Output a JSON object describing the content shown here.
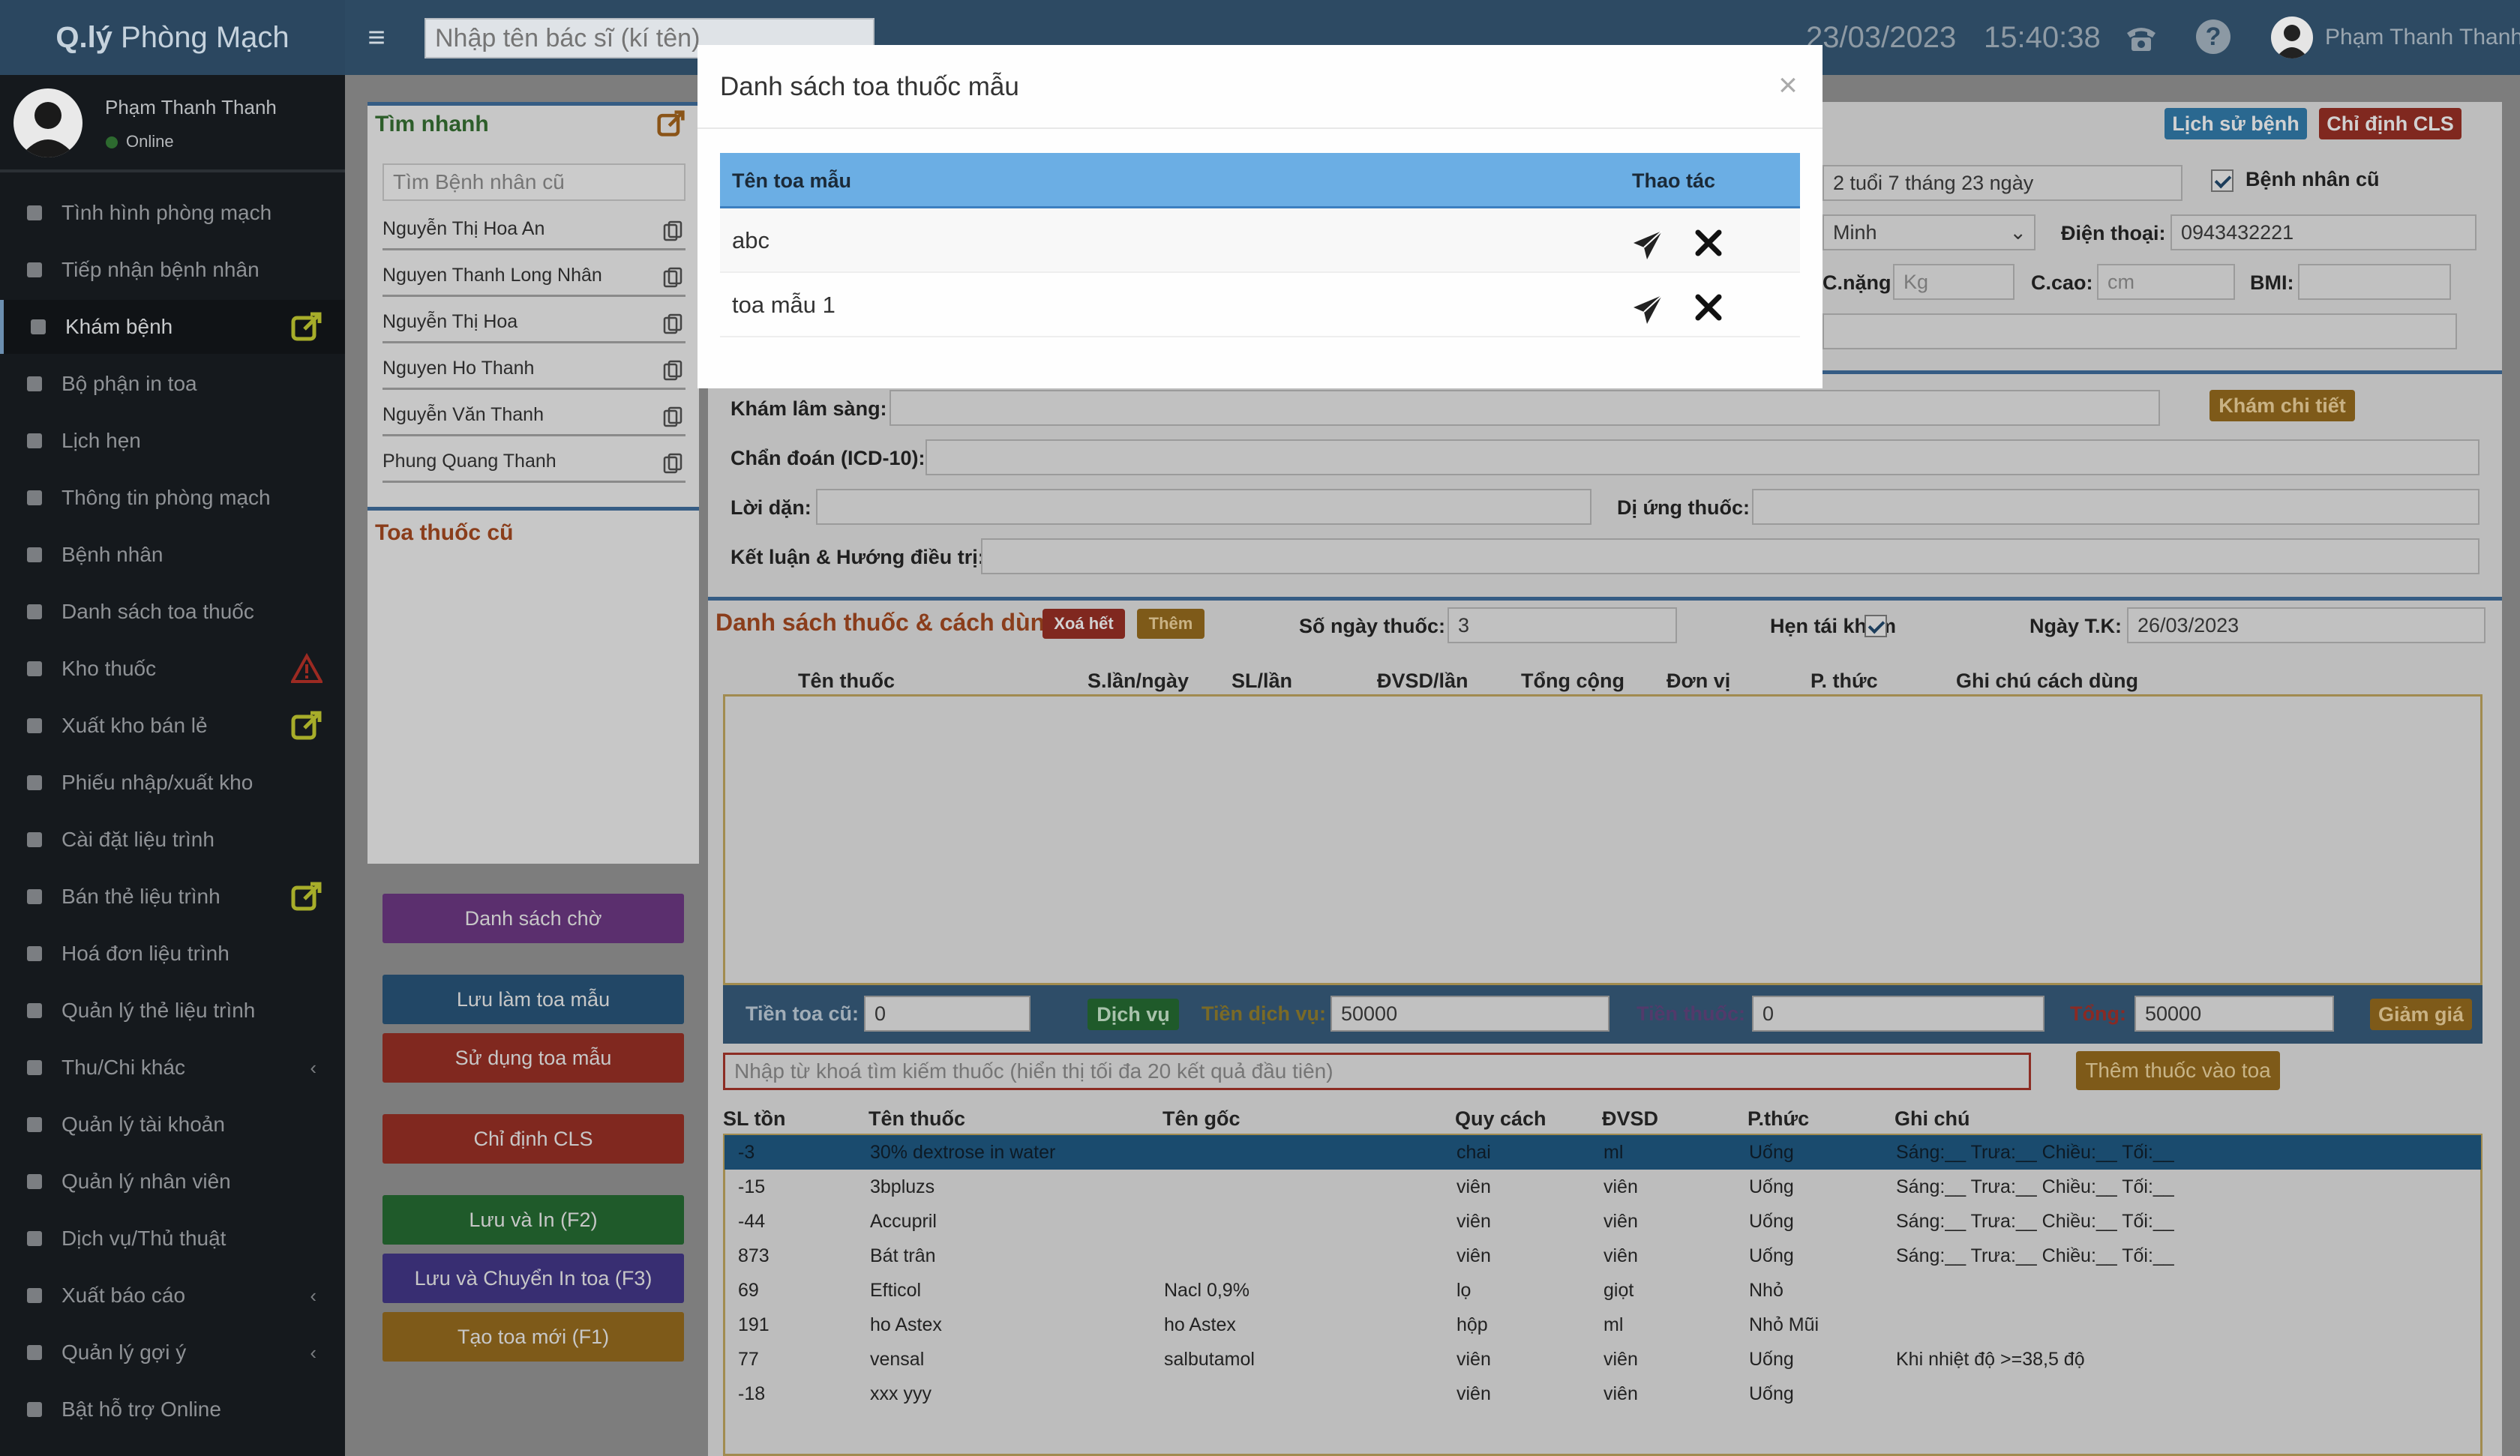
{
  "header": {
    "logo_prefix": "Q.lý",
    "logo_suffix": " Phòng Mạch",
    "doctor_search_placeholder": "Nhập tên bác sĩ (kí tên)",
    "date": "23/03/2023",
    "time": "15:40:38",
    "user_name": "Phạm Thanh Thanh"
  },
  "sidebar": {
    "user_name": "Phạm Thanh Thanh",
    "status": "Online",
    "items": [
      {
        "label": "Tình hình phòng mạch"
      },
      {
        "label": "Tiếp nhận bệnh nhân"
      },
      {
        "label": "Khám bệnh",
        "active": true,
        "badge": "external-link-icon"
      },
      {
        "label": "Bộ phận in toa"
      },
      {
        "label": "Lịch hẹn"
      },
      {
        "label": "Thông tin phòng mạch"
      },
      {
        "label": "Bệnh nhân"
      },
      {
        "label": "Danh sách toa thuốc"
      },
      {
        "label": "Kho thuốc",
        "badge": "warning-icon"
      },
      {
        "label": "Xuất kho bán lẻ",
        "badge": "external-link-icon"
      },
      {
        "label": "Phiếu nhập/xuất kho"
      },
      {
        "label": "Cài đặt liệu trình"
      },
      {
        "label": "Bán thẻ liệu trình",
        "badge": "external-link-icon"
      },
      {
        "label": "Hoá đơn liệu trình"
      },
      {
        "label": "Quản lý thẻ liệu trình"
      },
      {
        "label": "Thu/Chi khác",
        "chevron": true
      },
      {
        "label": "Quản lý tài khoản"
      },
      {
        "label": "Quản lý nhân viên"
      },
      {
        "label": "Dịch vụ/Thủ thuật"
      },
      {
        "label": "Xuất báo cáo",
        "chevron": true
      },
      {
        "label": "Quản lý gợi ý",
        "chevron": true
      },
      {
        "label": "Bật hỗ trợ Online"
      }
    ]
  },
  "quick": {
    "title": "Tìm nhanh",
    "search_placeholder": "Tìm Bệnh nhân cũ",
    "patients": [
      "Nguyễn Thị Hoa An",
      "Nguyen Thanh Long Nhân",
      "Nguyễn Thị Hoa",
      "Nguyen Ho Thanh",
      "Nguyễn Văn Thanh",
      "Phung Quang Thanh"
    ],
    "old_rx_title": "Toa thuốc cũ"
  },
  "actions": {
    "waiting_list": "Danh sách chờ",
    "save_template": "Lưu làm toa mẫu",
    "use_template": "Sử dụng toa mẫu",
    "order_cls": "Chỉ định CLS",
    "save_print": "Lưu và In (F2)",
    "save_transfer": "Lưu và Chuyển In toa (F3)",
    "new_rx": "Tạo toa mới (F1)"
  },
  "patient": {
    "history_btn": "Lịch sử bệnh",
    "cls_btn": "Chỉ định CLS",
    "age": "2 tuổi 7 tháng 23 ngày",
    "old_patient_label": "Bệnh nhân cũ",
    "district": "Minh",
    "phone_label": "Điện thoại:",
    "phone": "0943432221",
    "weight_label": "C.nặng:",
    "weight_ph": "Kg",
    "height_label": "C.cao:",
    "height_ph": "cm",
    "bmi_label": "BMI:"
  },
  "exam": {
    "clinical_label": "Khám lâm sàng:",
    "detail_btn": "Khám chi tiết",
    "diagnosis_label": "Chẩn đoán (ICD-10):",
    "advice_label": "Lời dặn:",
    "allergy_label": "Dị ứng thuốc:",
    "conclusion_label": "Kết luận & Hướng điều trị:"
  },
  "meds": {
    "title": "Danh sách thuốc & cách dùng",
    "clear_btn": "Xoá hết",
    "add_btn": "Thêm",
    "days_label": "Số ngày thuốc:",
    "days": "3",
    "revisit_label": "Hẹn tái khám",
    "revisit_date_label": "Ngày T.K:",
    "revisit_date": "26/03/2023",
    "columns": [
      "Tên thuốc",
      "S.lần/ngày",
      "SL/lần",
      "ĐVSD/lần",
      "Tổng cộng",
      "Đơn vị",
      "P. thức",
      "Ghi chú cách dùng"
    ]
  },
  "summary": {
    "old_rx_label": "Tiền toa cũ:",
    "old_rx_value": "0",
    "service_btn": "Dịch vụ",
    "service_label": "Tiền dịch vụ:",
    "service_value": "50000",
    "drug_label": "Tiền thuốc:",
    "drug_value": "0",
    "total_label": "Tổng:",
    "total_value": "50000",
    "discount_btn": "Giảm giá"
  },
  "drug_search": {
    "placeholder": "Nhập từ khoá tìm kiếm thuốc (hiển thị tối đa 20 kết quả đầu tiên)",
    "add_btn": "Thêm thuốc vào toa"
  },
  "results": {
    "columns": [
      "SL tồn",
      "Tên thuốc",
      "Tên gốc",
      "Quy cách",
      "ĐVSD",
      "P.thức",
      "Ghi chú"
    ],
    "rows": [
      {
        "qty": "-3",
        "name": "30% dextrose in water",
        "generic": "",
        "pack": "chai",
        "unit": "ml",
        "method": "Uống",
        "note": "Sáng:__ Trưa:__ Chiều:__ Tối:__"
      },
      {
        "qty": "-15",
        "name": "3bpluzs",
        "generic": "",
        "pack": "viên",
        "unit": "viên",
        "method": "Uống",
        "note": "Sáng:__ Trưa:__ Chiều:__ Tối:__"
      },
      {
        "qty": "-44",
        "name": "Accupril",
        "generic": "",
        "pack": "viên",
        "unit": "viên",
        "method": "Uống",
        "note": "Sáng:__ Trưa:__ Chiều:__ Tối:__"
      },
      {
        "qty": "873",
        "name": "Bát trân",
        "generic": "",
        "pack": "viên",
        "unit": "viên",
        "method": "Uống",
        "note": "Sáng:__ Trưa:__ Chiều:__ Tối:__"
      },
      {
        "qty": "69",
        "name": "Efticol",
        "generic": "Nacl 0,9%",
        "pack": "lọ",
        "unit": "giọt",
        "method": "Nhỏ",
        "note": ""
      },
      {
        "qty": "191",
        "name": "ho Astex",
        "generic": "ho Astex",
        "pack": "hộp",
        "unit": "ml",
        "method": "Nhỏ Mũi",
        "note": ""
      },
      {
        "qty": "77",
        "name": "vensal",
        "generic": "salbutamol",
        "pack": "viên",
        "unit": "viên",
        "method": "Uống",
        "note": "Khi nhiệt độ >=38,5 độ"
      },
      {
        "qty": "-18",
        "name": "xxx yyy",
        "generic": "",
        "pack": "viên",
        "unit": "viên",
        "method": "Uống",
        "note": ""
      }
    ]
  },
  "modal": {
    "title": "Danh sách toa thuốc mẫu",
    "col_name": "Tên toa mẫu",
    "col_actions": "Thao tác",
    "rows": [
      {
        "name": "abc"
      },
      {
        "name": "toa mẫu 1"
      }
    ]
  },
  "colors": {
    "header_bg": "#2d4a63",
    "sidebar_bg": "#15191d",
    "table_header": "#6baee4",
    "selected_row": "#1a4b6e"
  }
}
